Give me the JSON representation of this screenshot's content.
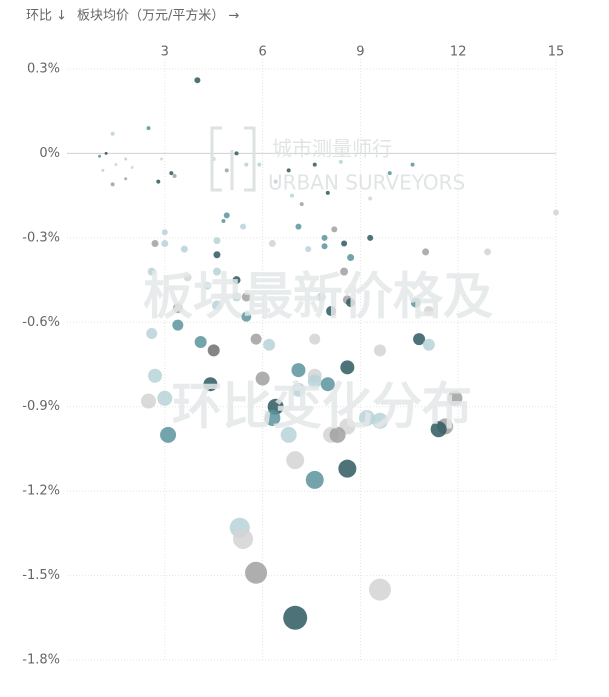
{
  "chart_data": {
    "type": "scatter",
    "y_label": "环比 ↓",
    "x_label": "板块均价（万元/平方米） →",
    "annotations": [
      "城市测量师行",
      "URBAN SURVEYORS",
      "板块最新价格及",
      "环比变化分布"
    ],
    "xlim": [
      0,
      15
    ],
    "ylim": [
      -1.8,
      0.3
    ],
    "xticks": [
      3,
      6,
      9,
      12,
      15
    ],
    "yticks": [
      {
        "value": 0.3,
        "label": "0.3%"
      },
      {
        "value": 0,
        "label": "0%"
      },
      {
        "value": -0.3,
        "label": "-0.3%"
      },
      {
        "value": -0.6,
        "label": "-0.6%"
      },
      {
        "value": -0.9,
        "label": "-0.9%"
      },
      {
        "value": -1.2,
        "label": "-1.2%"
      },
      {
        "value": -1.5,
        "label": "-1.5%"
      },
      {
        "value": -1.8,
        "label": "-1.8%"
      }
    ],
    "grid": true,
    "x": [
      4.0,
      2.5,
      1.4,
      1.2,
      1.0,
      1.5,
      1.8,
      2.0,
      1.1,
      1.4,
      1.8,
      2.8,
      3.2,
      3.3,
      2.9,
      4.5,
      4.9,
      5.2,
      5.5,
      5.9,
      6.4,
      6.8,
      7.2,
      7.6,
      8.4,
      9.9,
      10.6,
      9.3,
      15.0,
      6.9,
      8.0,
      4.9,
      4.8,
      5.4,
      7.1,
      8.2,
      9.3,
      7.9,
      7.4,
      7.9,
      8.5,
      11.0,
      12.9,
      3.0,
      2.7,
      3.0,
      3.6,
      4.6,
      6.3,
      4.6,
      8.7,
      2.6,
      3.7,
      4.6,
      8.5,
      5.2,
      4.3,
      5.2,
      5.5,
      7.8,
      8.6,
      8.7,
      10.7,
      4.6,
      8.1,
      3.4,
      5.5,
      11.1,
      3.4,
      2.6,
      5.8,
      7.6,
      10.8,
      4.1,
      6.2,
      4.5,
      9.6,
      11.1,
      8.6,
      7.1,
      2.7,
      6.0,
      7.6,
      7.6,
      4.4,
      7.1,
      8.0,
      3.0,
      2.5,
      11.9,
      6.4,
      6.3,
      9.2,
      9.6,
      8.6,
      11.6,
      11.4,
      3.1,
      6.8,
      8.1,
      8.3,
      7.0,
      8.6,
      7.6,
      5.3,
      5.4,
      5.8,
      9.6,
      7.0
    ],
    "y": [
      0.26,
      0.09,
      0.07,
      0.0,
      -0.01,
      -0.04,
      -0.02,
      -0.05,
      -0.06,
      -0.11,
      -0.09,
      -0.1,
      -0.07,
      -0.08,
      -0.02,
      -0.02,
      -0.06,
      0.0,
      -0.04,
      -0.04,
      -0.1,
      -0.06,
      -0.18,
      -0.04,
      -0.03,
      -0.07,
      -0.04,
      -0.16,
      -0.21,
      -0.15,
      -0.14,
      -0.22,
      -0.24,
      -0.26,
      -0.26,
      -0.27,
      -0.3,
      -0.3,
      -0.34,
      -0.33,
      -0.32,
      -0.35,
      -0.35,
      -0.28,
      -0.32,
      -0.32,
      -0.34,
      -0.31,
      -0.32,
      -0.36,
      -0.37,
      -0.42,
      -0.44,
      -0.42,
      -0.42,
      -0.45,
      -0.47,
      -0.51,
      -0.51,
      -0.51,
      -0.52,
      -0.53,
      -0.53,
      -0.54,
      -0.56,
      -0.55,
      -0.58,
      -0.56,
      -0.61,
      -0.64,
      -0.66,
      -0.66,
      -0.66,
      -0.67,
      -0.68,
      -0.7,
      -0.7,
      -0.68,
      -0.76,
      -0.77,
      -0.79,
      -0.8,
      -0.79,
      -0.81,
      -0.82,
      -0.84,
      -0.82,
      -0.87,
      -0.88,
      -0.87,
      -0.9,
      -0.94,
      -0.94,
      -0.95,
      -0.97,
      -0.97,
      -0.98,
      -1.0,
      -1.0,
      -1.0,
      -1.0,
      -1.09,
      -1.12,
      -1.16,
      -1.33,
      -1.37,
      -1.49,
      -1.55,
      -1.65
    ],
    "sizes": [
      3,
      2,
      2,
      1.5,
      1.5,
      1.5,
      1.5,
      1.5,
      1.5,
      2,
      1.5,
      2,
      2,
      2,
      1.5,
      2,
      2,
      2,
      2,
      2,
      2,
      2,
      2,
      2,
      2,
      2,
      2,
      2,
      3,
      2,
      2,
      3,
      2,
      3,
      3,
      3,
      3,
      3,
      3,
      3,
      3,
      3.5,
      3.5,
      3,
      3.5,
      3.5,
      3.5,
      3.5,
      3.5,
      3.5,
      3.5,
      4,
      4,
      4,
      4,
      4,
      4,
      4.5,
      4.5,
      4.5,
      4.5,
      4.5,
      5,
      5,
      5,
      5,
      5,
      5,
      5.5,
      5.5,
      5.5,
      5.5,
      6,
      6,
      6,
      6,
      6,
      6,
      7,
      7,
      7,
      7,
      7,
      7,
      7,
      7,
      7,
      7.5,
      7.5,
      7.5,
      8,
      8,
      8,
      8,
      8,
      8,
      8,
      8,
      8,
      8,
      8,
      9,
      9,
      9,
      10,
      10,
      11,
      11,
      12
    ],
    "colors": [
      "#2e5b60",
      "#5b949c",
      "#b7d4d8",
      "#2e5b60",
      "#5b949c",
      "#d4d4d4",
      "#b7d4d8",
      "#d4d4d4",
      "#b7d4d8",
      "#a0a0a0",
      "#a0a0a0",
      "#2e5b60",
      "#2e5b60",
      "#a0a0a0",
      "#d4d4d4",
      "#d4d4d4",
      "#a0a0a0",
      "#2e5b60",
      "#b7d4d8",
      "#b7d4d8",
      "#b7d4d8",
      "#2e5b60",
      "#a0a0a0",
      "#2e5b60",
      "#b7d4d8",
      "#5b949c",
      "#5b949c",
      "#d4d4d4",
      "#d4d4d4",
      "#b7d4d8",
      "#2e5b60",
      "#5b949c",
      "#5b949c",
      "#b7d4d8",
      "#5b949c",
      "#a0a0a0",
      "#2e5b60",
      "#5b949c",
      "#b7d4d8",
      "#5b949c",
      "#2e5b60",
      "#a0a0a0",
      "#d4d4d4",
      "#b7d4d8",
      "#a0a0a0",
      "#b7d4d8",
      "#b7d4d8",
      "#b7d4d8",
      "#d4d4d4",
      "#2e5b60",
      "#5b949c",
      "#b7d4d8",
      "#d4d4d4",
      "#b7d4d8",
      "#a0a0a0",
      "#2e5b60",
      "#b7d4d8",
      "#b7d4d8",
      "#a0a0a0",
      "#b7d4d8",
      "#a0a0a0",
      "#2e5b60",
      "#5b949c",
      "#b7d4d8",
      "#2e5b60",
      "#a0a0a0",
      "#5b949c",
      "#d4d4d4",
      "#5b949c",
      "#b7d4d8",
      "#a0a0a0",
      "#d4d4d4",
      "#2e5b60",
      "#5b949c",
      "#b7d4d8",
      "#707070",
      "#d4d4d4",
      "#b7d4d8",
      "#2e5b60",
      "#5b949c",
      "#b7d4d8",
      "#a0a0a0",
      "#d4d4d4",
      "#b7d4d8",
      "#2e5b60",
      "#b7d4d8",
      "#5b949c",
      "#b7d4d8",
      "#d4d4d4",
      "#a0a0a0",
      "#2e5b60",
      "#5b949c",
      "#b7d4d8",
      "#b7d4d8",
      "#d4d4d4",
      "#a0a0a0",
      "#2e5b60",
      "#5b949c",
      "#b7d4d8",
      "#d4d4d4",
      "#a0a0a0",
      "#d4d4d4",
      "#2e5b60",
      "#5b949c",
      "#b7d4d8",
      "#d4d4d4",
      "#a0a0a0",
      "#d4d4d4",
      "#2e5b60"
    ]
  }
}
